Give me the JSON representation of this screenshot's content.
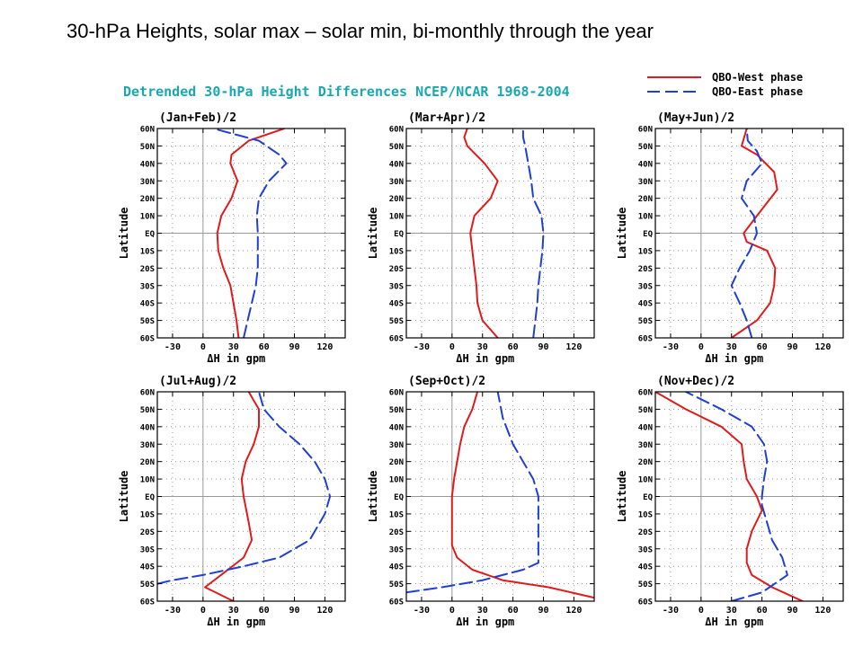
{
  "slide": {
    "title": "30-hPa Heights, solar max – solar min, bi-monthly through the year"
  },
  "figure": {
    "title": "Detrended 30-hPa Height Differences NCEP/NCAR 1968-2004",
    "title_color": "#1aa8b0",
    "legend": [
      {
        "label": "QBO-West phase",
        "color": "#e11b1b",
        "dash": "solid"
      },
      {
        "label": "QBO-East phase",
        "color": "#1f3fd6",
        "dash": "dashed"
      }
    ]
  },
  "chart_data": [
    {
      "type": "line",
      "title": "(Jan+Feb)/2",
      "xlabel": "ΔH in gpm",
      "ylabel": "Latitude",
      "xlim": [
        -45,
        140
      ],
      "ylim": [
        -60,
        60
      ],
      "xticks": [
        "-30",
        "0",
        "30",
        "60",
        "90",
        "120"
      ],
      "xtick_values": [
        -30,
        0,
        30,
        60,
        90,
        120
      ],
      "yticks": [
        "60S",
        "50S",
        "40S",
        "30S",
        "20S",
        "10S",
        "EQ",
        "10N",
        "20N",
        "30N",
        "40N",
        "50N",
        "60N"
      ],
      "ytick_values": [
        -60,
        -50,
        -40,
        -30,
        -20,
        -10,
        0,
        10,
        20,
        30,
        40,
        50,
        60
      ],
      "grid": true,
      "series": [
        {
          "name": "QBO-West phase",
          "x": [
            35,
            33,
            30,
            27,
            20,
            15,
            14,
            18,
            28,
            34,
            27,
            28,
            45,
            80
          ],
          "y": [
            -60,
            -50,
            -40,
            -30,
            -20,
            -10,
            0,
            10,
            20,
            30,
            40,
            45,
            53,
            60
          ]
        },
        {
          "name": "QBO-East phase",
          "x": [
            40,
            44,
            48,
            52,
            54,
            54,
            54,
            53,
            55,
            65,
            82,
            75,
            55,
            10
          ],
          "y": [
            -60,
            -50,
            -40,
            -30,
            -20,
            -10,
            0,
            10,
            20,
            30,
            40,
            45,
            53,
            60
          ]
        }
      ]
    },
    {
      "type": "line",
      "title": "(Mar+Apr)/2",
      "xlabel": "ΔH in gpm",
      "ylabel": "Latitude",
      "xlim": [
        -45,
        140
      ],
      "ylim": [
        -60,
        60
      ],
      "xticks": [
        "-30",
        "0",
        "30",
        "60",
        "90",
        "120"
      ],
      "xtick_values": [
        -30,
        0,
        30,
        60,
        90,
        120
      ],
      "yticks": [
        "60S",
        "50S",
        "40S",
        "30S",
        "20S",
        "10S",
        "EQ",
        "10N",
        "20N",
        "30N",
        "40N",
        "50N",
        "60N"
      ],
      "ytick_values": [
        -60,
        -50,
        -40,
        -30,
        -20,
        -10,
        0,
        10,
        20,
        30,
        40,
        50,
        60
      ],
      "grid": true,
      "series": [
        {
          "name": "QBO-West phase",
          "x": [
            45,
            30,
            25,
            24,
            22,
            20,
            18,
            22,
            38,
            45,
            32,
            15,
            12,
            15
          ],
          "y": [
            -60,
            -50,
            -40,
            -30,
            -20,
            -10,
            0,
            10,
            20,
            30,
            40,
            50,
            55,
            60
          ]
        },
        {
          "name": "QBO-East phase",
          "x": [
            80,
            82,
            84,
            85,
            87,
            89,
            90,
            88,
            80,
            78,
            75,
            72,
            70,
            70
          ],
          "y": [
            -60,
            -50,
            -40,
            -30,
            -20,
            -10,
            0,
            10,
            20,
            30,
            40,
            50,
            55,
            60
          ]
        }
      ]
    },
    {
      "type": "line",
      "title": "(May+Jun)/2",
      "xlabel": "ΔH in gpm",
      "ylabel": "Latitude",
      "xlim": [
        -45,
        140
      ],
      "ylim": [
        -60,
        60
      ],
      "xticks": [
        "-30",
        "0",
        "30",
        "60",
        "90",
        "120"
      ],
      "xtick_values": [
        -30,
        0,
        30,
        60,
        90,
        120
      ],
      "yticks": [
        "60S",
        "50S",
        "40S",
        "30S",
        "20S",
        "10S",
        "EQ",
        "10N",
        "20N",
        "30N",
        "40N",
        "50N",
        "60N"
      ],
      "ytick_values": [
        -60,
        -50,
        -40,
        -30,
        -20,
        -10,
        0,
        10,
        20,
        30,
        40,
        50,
        60
      ],
      "grid": true,
      "series": [
        {
          "name": "QBO-West phase",
          "x": [
            30,
            55,
            68,
            72,
            73,
            65,
            45,
            42,
            55,
            75,
            72,
            55,
            40,
            45
          ],
          "y": [
            -60,
            -50,
            -40,
            -30,
            -20,
            -10,
            -5,
            0,
            10,
            25,
            35,
            45,
            50,
            60
          ]
        },
        {
          "name": "QBO-East phase",
          "x": [
            50,
            45,
            38,
            30,
            38,
            48,
            55,
            52,
            40,
            45,
            60,
            55,
            46,
            45
          ],
          "y": [
            -60,
            -50,
            -40,
            -30,
            -20,
            -10,
            0,
            10,
            20,
            30,
            40,
            47,
            53,
            60
          ]
        }
      ]
    },
    {
      "type": "line",
      "title": "(Jul+Aug)/2",
      "xlabel": "ΔH in gpm",
      "ylabel": "Latitude",
      "xlim": [
        -45,
        140
      ],
      "ylim": [
        -60,
        60
      ],
      "xticks": [
        "-30",
        "0",
        "30",
        "60",
        "90",
        "120"
      ],
      "xtick_values": [
        -30,
        0,
        30,
        60,
        90,
        120
      ],
      "yticks": [
        "60S",
        "50S",
        "40S",
        "30S",
        "20S",
        "10S",
        "EQ",
        "10N",
        "20N",
        "30N",
        "40N",
        "50N",
        "60N"
      ],
      "ytick_values": [
        -60,
        -50,
        -40,
        -30,
        -20,
        -10,
        0,
        10,
        20,
        30,
        40,
        50,
        60
      ],
      "grid": true,
      "series": [
        {
          "name": "QBO-West phase",
          "x": [
            30,
            2,
            20,
            40,
            48,
            45,
            40,
            38,
            42,
            50,
            55,
            55,
            50,
            45
          ],
          "y": [
            -60,
            -52,
            -44,
            -35,
            -25,
            -15,
            0,
            10,
            20,
            30,
            40,
            50,
            55,
            60
          ]
        },
        {
          "name": "QBO-East phase",
          "x": [
            -45,
            -30,
            0,
            40,
            75,
            105,
            120,
            125,
            120,
            110,
            95,
            75,
            60,
            55
          ],
          "y": [
            -50,
            -48,
            -45,
            -40,
            -35,
            -25,
            -10,
            0,
            10,
            20,
            30,
            40,
            50,
            60
          ]
        }
      ]
    },
    {
      "type": "line",
      "title": "(Sep+Oct)/2",
      "xlabel": "ΔH in gpm",
      "ylabel": "Latitude",
      "xlim": [
        -45,
        140
      ],
      "ylim": [
        -60,
        60
      ],
      "xticks": [
        "-30",
        "0",
        "30",
        "60",
        "90",
        "120"
      ],
      "xtick_values": [
        -30,
        0,
        30,
        60,
        90,
        120
      ],
      "yticks": [
        "60S",
        "50S",
        "40S",
        "30S",
        "20S",
        "10S",
        "EQ",
        "10N",
        "20N",
        "30N",
        "40N",
        "50N",
        "60N"
      ],
      "ytick_values": [
        -60,
        -50,
        -40,
        -30,
        -20,
        -10,
        0,
        10,
        20,
        30,
        40,
        50,
        60
      ],
      "grid": true,
      "series": [
        {
          "name": "QBO-West phase",
          "x": [
            140,
            95,
            50,
            20,
            5,
            0,
            0,
            0,
            2,
            5,
            8,
            12,
            20,
            25
          ],
          "y": [
            -58,
            -52,
            -48,
            -42,
            -35,
            -28,
            -15,
            0,
            10,
            20,
            30,
            40,
            50,
            60
          ]
        },
        {
          "name": "QBO-East phase",
          "x": [
            -45,
            -10,
            30,
            70,
            85,
            85,
            85,
            85,
            85,
            80,
            70,
            60,
            50,
            45
          ],
          "y": [
            -55,
            -52,
            -48,
            -42,
            -38,
            -30,
            -20,
            -10,
            0,
            10,
            20,
            30,
            45,
            60
          ]
        }
      ]
    },
    {
      "type": "line",
      "title": "(Nov+Dec)/2",
      "xlabel": "ΔH in gpm",
      "ylabel": "Latitude",
      "xlim": [
        -45,
        140
      ],
      "ylim": [
        -60,
        60
      ],
      "xticks": [
        "-30",
        "0",
        "30",
        "60",
        "90",
        "120"
      ],
      "xtick_values": [
        -30,
        0,
        30,
        60,
        90,
        120
      ],
      "yticks": [
        "60S",
        "50S",
        "40S",
        "30S",
        "20S",
        "10S",
        "EQ",
        "10N",
        "20N",
        "30N",
        "40N",
        "50N",
        "60N"
      ],
      "ytick_values": [
        -60,
        -50,
        -40,
        -30,
        -20,
        -10,
        0,
        10,
        20,
        30,
        40,
        50,
        60
      ],
      "grid": true,
      "series": [
        {
          "name": "QBO-West phase",
          "x": [
            100,
            70,
            50,
            45,
            45,
            50,
            60,
            55,
            45,
            42,
            40,
            20,
            -15,
            -45
          ],
          "y": [
            -60,
            -52,
            -45,
            -38,
            -30,
            -20,
            -8,
            0,
            10,
            20,
            30,
            40,
            50,
            60
          ]
        },
        {
          "name": "QBO-East phase",
          "x": [
            30,
            60,
            85,
            80,
            70,
            65,
            60,
            60,
            62,
            65,
            62,
            50,
            20,
            -15
          ],
          "y": [
            -60,
            -55,
            -45,
            -35,
            -25,
            -15,
            -5,
            0,
            10,
            20,
            30,
            40,
            50,
            60
          ]
        }
      ]
    }
  ]
}
